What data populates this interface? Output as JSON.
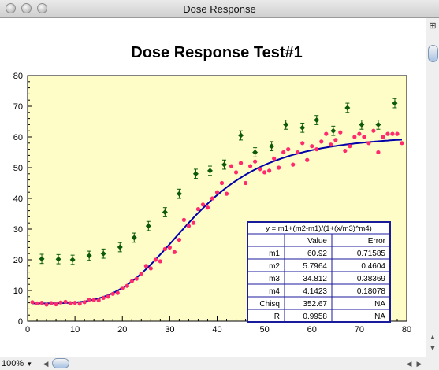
{
  "window": {
    "title": "Dose Response"
  },
  "statusbar": {
    "zoom": "100%",
    "zoom_arrow": "▼"
  },
  "colors": {
    "plot_bg": "#fffdc7",
    "fit": "#0000aa",
    "measured": "#ff2a6d",
    "control": "#0b5a0b",
    "table_border": "#1a1a9c"
  },
  "chart_data": {
    "type": "scatter",
    "title": "Dose Response Test#1",
    "xlabel": "",
    "ylabel": "",
    "xlim": [
      0,
      80
    ],
    "ylim": [
      0,
      80
    ],
    "xticks": [
      "0",
      "10",
      "20",
      "30",
      "40",
      "50",
      "60",
      "70",
      "80"
    ],
    "yticks": [
      "0",
      "10",
      "20",
      "30",
      "40",
      "50",
      "60",
      "70",
      "80"
    ],
    "grid": false,
    "series": [
      {
        "marker": "circle",
        "x": [
          1,
          2,
          3,
          4,
          5,
          6,
          7,
          8,
          9,
          10,
          11,
          12,
          13,
          14,
          15,
          16,
          17,
          18,
          19,
          20,
          21,
          22,
          23,
          24,
          25,
          26,
          27,
          28,
          29,
          30,
          31,
          32,
          33,
          34,
          35,
          36,
          37,
          38,
          39,
          40,
          41,
          42,
          43,
          44,
          45,
          46,
          47,
          48,
          49,
          50,
          51,
          52,
          53,
          54,
          55,
          56,
          57,
          58,
          59,
          60,
          61,
          62,
          63,
          64,
          65,
          66,
          67,
          68,
          69,
          70,
          71,
          72,
          73,
          74,
          75,
          76,
          77,
          78,
          79
        ],
        "y": [
          6.2,
          5.8,
          6.0,
          5.4,
          5.9,
          5.5,
          6.1,
          6.3,
          5.9,
          6.0,
          5.7,
          6.2,
          7.0,
          6.9,
          6.8,
          7.6,
          8.0,
          8.9,
          9.2,
          10.8,
          11.5,
          13.0,
          13.8,
          15.5,
          18.0,
          17.2,
          20.0,
          19.5,
          23.5,
          24.0,
          22.5,
          26.5,
          33.0,
          31.0,
          32.0,
          36.5,
          38.0,
          37.0,
          40.0,
          42.0,
          45.0,
          41.5,
          50.5,
          48.5,
          51.5,
          45.0,
          50.5,
          52.0,
          49.5,
          48.5,
          49.0,
          53.0,
          50.0,
          55.0,
          56.0,
          51.0,
          55.0,
          58.0,
          52.5,
          57.0,
          56.0,
          58.5,
          61.0,
          57.5,
          59.0,
          61.5,
          55.5,
          57.0,
          60.0,
          61.0,
          60.0,
          58.0,
          62.0,
          55.0,
          60.0,
          61.0,
          61.0,
          61.0,
          58.0
        ]
      },
      {
        "marker": "diamond-errorbar",
        "x": [
          3,
          6.5,
          9.5,
          13,
          16,
          19.5,
          22.5,
          25.5,
          29,
          32,
          35.5,
          38.5,
          41.5,
          45,
          48,
          51.5,
          54.5,
          58,
          61,
          64.5,
          67.5,
          70.5,
          74,
          77.5
        ],
        "y": [
          20.3,
          20.2,
          20.0,
          21.3,
          22.0,
          24.1,
          27.2,
          31.0,
          35.5,
          41.5,
          48.0,
          49.0,
          51.0,
          60.5,
          55.0,
          57.0,
          64.0,
          63.0,
          65.5,
          62.0,
          69.5,
          64.0,
          64.0,
          71.0
        ],
        "error": [
          1.5,
          1.5,
          1.5,
          1.5,
          1.5,
          1.5,
          1.5,
          1.5,
          1.5,
          1.5,
          1.5,
          1.5,
          1.5,
          1.5,
          1.5,
          1.5,
          1.5,
          1.5,
          1.5,
          1.5,
          1.5,
          1.5,
          1.5,
          1.5
        ]
      },
      {
        "type": "line",
        "model": "y = m1+(m2-m1)/(1+(x/m3)^m4)",
        "m1": 60.92,
        "m2": 5.7964,
        "m3": 34.812,
        "m4": 4.1423,
        "x_range": [
          1,
          79
        ]
      }
    ],
    "fit_table": {
      "equation": "y = m1+(m2-m1)/(1+(x/m3)^m4)",
      "headers": [
        "",
        "Value",
        "Error"
      ],
      "rows": [
        [
          "m1",
          "60.92",
          "0.71585"
        ],
        [
          "m2",
          "5.7964",
          "0.4604"
        ],
        [
          "m3",
          "34.812",
          "0.38369"
        ],
        [
          "m4",
          "4.1423",
          "0.18078"
        ],
        [
          "Chisq",
          "352.67",
          "NA"
        ],
        [
          "R",
          "0.9958",
          "NA"
        ]
      ]
    }
  }
}
